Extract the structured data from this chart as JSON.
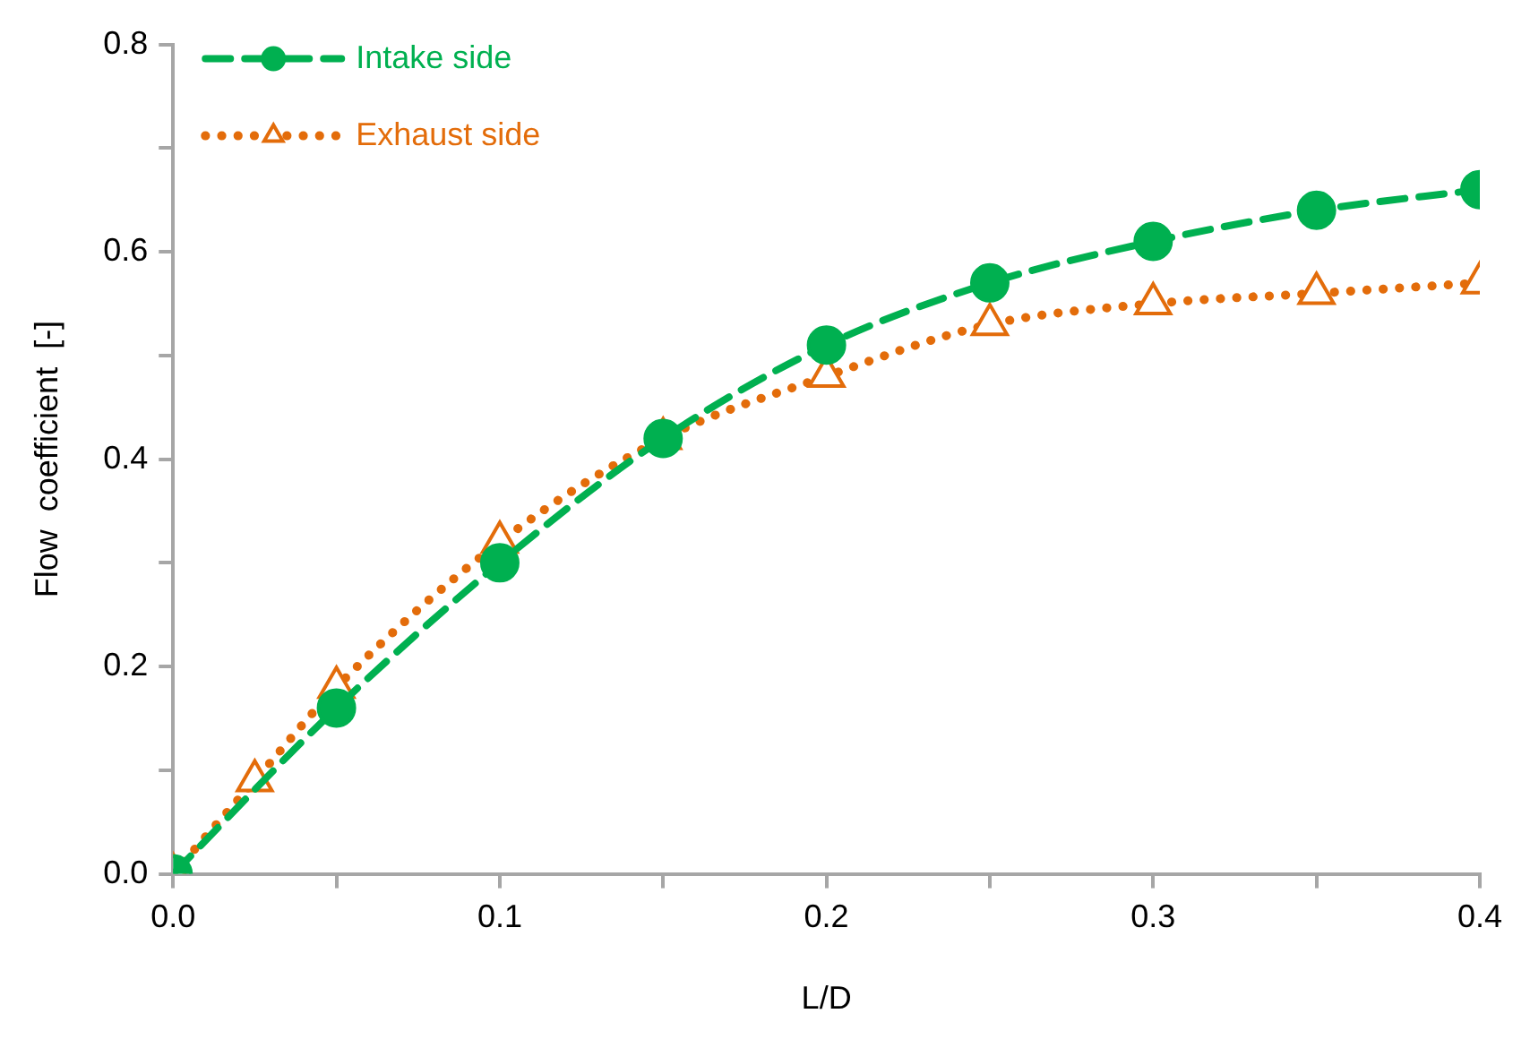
{
  "chart_data": {
    "type": "line",
    "xlabel": "L/D",
    "ylabel": "Flow  coefficient  [-]",
    "xlim": [
      0,
      0.4
    ],
    "ylim": [
      0,
      0.8
    ],
    "xticks": [
      {
        "value": 0,
        "label": "0.0"
      },
      {
        "value": 0.05,
        "label": null
      },
      {
        "value": 0.1,
        "label": "0.1"
      },
      {
        "value": 0.15,
        "label": null
      },
      {
        "value": 0.2,
        "label": "0.2"
      },
      {
        "value": 0.25,
        "label": null
      },
      {
        "value": 0.3,
        "label": "0.3"
      },
      {
        "value": 0.35,
        "label": null
      },
      {
        "value": 0.4,
        "label": "0.4"
      }
    ],
    "yticks": [
      {
        "value": 0,
        "label": "0.0"
      },
      {
        "value": 0.1,
        "label": null
      },
      {
        "value": 0.2,
        "label": "0.2"
      },
      {
        "value": 0.3,
        "label": null
      },
      {
        "value": 0.4,
        "label": "0.4"
      },
      {
        "value": 0.5,
        "label": null
      },
      {
        "value": 0.6,
        "label": "0.6"
      },
      {
        "value": 0.7,
        "label": null
      },
      {
        "value": 0.8,
        "label": "0.8"
      }
    ],
    "grid": false,
    "legend": "top left",
    "series": [
      {
        "name": "Intake side",
        "color": "#00b050",
        "marker": "circle",
        "line_style": "dashed",
        "x": [
          0,
          0.05,
          0.1,
          0.15,
          0.2,
          0.25,
          0.3,
          0.35,
          0.4
        ],
        "values": [
          0,
          0.16,
          0.3,
          0.42,
          0.51,
          0.57,
          0.61,
          0.64,
          0.66
        ]
      },
      {
        "name": "Exhaust side",
        "color": "#e36c0a",
        "marker": "triangle",
        "line_style": "dotted",
        "x": [
          0,
          0.025,
          0.05,
          0.1,
          0.15,
          0.2,
          0.25,
          0.3,
          0.35,
          0.4
        ],
        "values": [
          0,
          0.09,
          0.18,
          0.32,
          0.42,
          0.48,
          0.53,
          0.55,
          0.56,
          0.57
        ]
      }
    ]
  }
}
